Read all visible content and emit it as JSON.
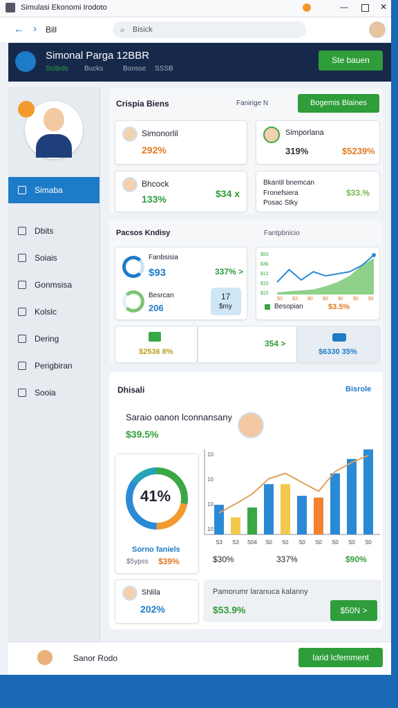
{
  "window": {
    "title": "Simulasi Ekonomi Irodoto"
  },
  "toolbar": {
    "tab": "Bill",
    "search": "Bisick"
  },
  "header": {
    "title": "Simonal Parga 12BBR",
    "meta": [
      "Scitbds",
      "Bucks",
      "Bonsse",
      "SSSB"
    ],
    "button": "Ste bauen"
  },
  "sidebar": {
    "items": [
      "Simaba",
      "Dbits",
      "Soiais",
      "Gonmsisa",
      "Kolslc",
      "Dering",
      "Perigbiran",
      "Sooia"
    ],
    "active": 0
  },
  "section1": {
    "title": "Crispia Biens",
    "filter": "Fanirige N",
    "button": "Bogemis Blaines",
    "cards": [
      {
        "title": "Simonorlil",
        "value": "292%"
      },
      {
        "title": "Simporlana",
        "value": "319%",
        "extra": "$5239%"
      },
      {
        "title": "Bhcock",
        "value": "133%",
        "extra": "$34 x"
      },
      {
        "title": "Bkantil bnemcan",
        "lines": [
          "Fronefsiera",
          "Posac Stky"
        ],
        "extra": "$33.%"
      }
    ]
  },
  "section2": {
    "title": "Pacsos Kndisy",
    "right_title": "Fantpbnicio",
    "cards": [
      {
        "title": "Fanbsisia",
        "value": "$93",
        "extra": "337% >"
      },
      {
        "title": "Besrcan",
        "value": "206"
      },
      {
        "value": "17",
        "label": "$my"
      }
    ],
    "chart": {
      "ylim": [
        0,
        100
      ],
      "series": [
        {
          "type": "area",
          "color": "#8fd08a",
          "values": [
            5,
            8,
            10,
            12,
            20,
            30,
            45,
            70,
            88
          ]
        },
        {
          "type": "line",
          "color": "#2b8ad6",
          "values": [
            30,
            60,
            35,
            55,
            45,
            50,
            55,
            70,
            95
          ]
        }
      ],
      "ylabels": [
        "$93",
        "$3b",
        "$12",
        "$10",
        "$15"
      ],
      "xlabels": [
        "$3",
        "$3",
        "$0",
        "$0",
        "$0",
        "$0",
        "$0"
      ],
      "legend": "Besopian",
      "value": "$3.5%"
    },
    "bottom": [
      "$2536 8%",
      "354 >",
      "$6330 35%"
    ]
  },
  "section3": {
    "title": "Dhisali",
    "link": "Bisrole",
    "headline": "Saraio oanon lconnansany",
    "headline_value": "$39.5%",
    "donut": {
      "center": "41%",
      "title": "Sorno faniels",
      "sub": "$5ypss",
      "value": "$39%",
      "segments": [
        {
          "value": 28,
          "color": "#3aa845"
        },
        {
          "value": 22,
          "color": "#f29a2e"
        },
        {
          "value": 35,
          "color": "#2b8ad6"
        },
        {
          "value": 15,
          "color": "#27a3b5"
        }
      ]
    },
    "bars": {
      "ylim": [
        0,
        100
      ],
      "ylabels": [
        "10",
        "10",
        "10",
        "10"
      ],
      "xlabels": [
        "S3",
        "S3",
        "S04",
        "S0",
        "50",
        "S0",
        "S0",
        "S0",
        "S0",
        "S0"
      ],
      "values": [
        33,
        19,
        30,
        56,
        56,
        43,
        41,
        68,
        84,
        98
      ],
      "colors": [
        "#2b8ad6",
        "#f2c94c",
        "#3aa845",
        "#2b8ad6",
        "#f2c94c",
        "#2b8ad6",
        "#f2822e",
        "#2b8ad6",
        "#2b8ad6",
        "#2b8ad6"
      ],
      "line": [
        24,
        34,
        45,
        62,
        68,
        58,
        48,
        70,
        80,
        88
      ],
      "line_color": "#e0a15a"
    },
    "footer": [
      "$30%",
      "337%",
      "$90%"
    ],
    "cards": [
      {
        "title": "Shlila",
        "value": "202%"
      },
      {
        "title": "Pamorumr laranuca kalanny",
        "value": "$53.9%",
        "button": "$50N >"
      }
    ]
  },
  "footer": {
    "name": "Sanor Rodo",
    "button": "Iarid lcfemment"
  }
}
